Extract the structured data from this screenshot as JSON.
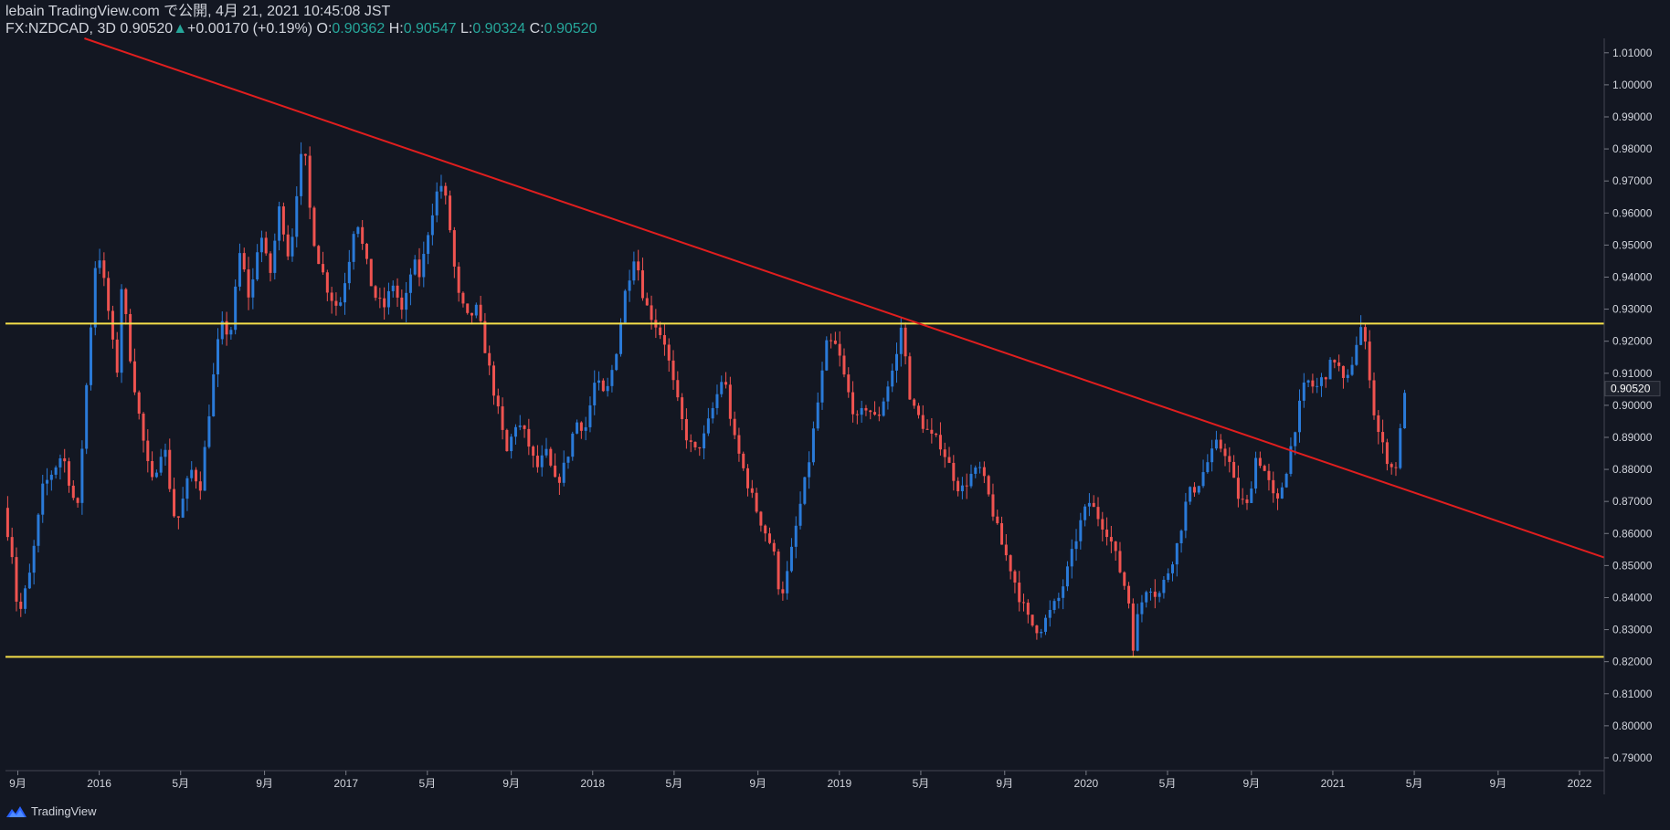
{
  "header": {
    "publish_line": "lebain TradingView.com で公開, 4月 21, 2021 10:45:08 JST",
    "symbol": "FX:NZDCAD, 3D",
    "last": "0.90520",
    "change": "+0.00170 (+0.19%)",
    "o_label": "O:",
    "o_value": "0.90362",
    "h_label": "H:",
    "h_value": "0.90547",
    "l_label": "L:",
    "l_value": "0.90324",
    "c_label": "C:",
    "c_value": "0.90520"
  },
  "footer": {
    "brand": "TradingView",
    "logo_icon": "tradingview-logo-icon"
  },
  "colors": {
    "background": "#131722",
    "up": "#2a7ad8",
    "down": "#ef5350",
    "trendline": "#e01e1e",
    "horizontal_line": "#f5e04a",
    "axis_text": "#d1d4dc",
    "price_tag_bg": "#1e222d",
    "change_up": "#26a69a"
  },
  "chart_data": {
    "type": "candlestick",
    "symbol": "FX:NZDCAD",
    "timeframe": "3D",
    "y_ticks": [
      "0.79000",
      "0.80000",
      "0.81000",
      "0.82000",
      "0.83000",
      "0.84000",
      "0.85000",
      "0.86000",
      "0.87000",
      "0.88000",
      "0.89000",
      "0.90000",
      "0.91000",
      "0.92000",
      "0.93000",
      "0.94000",
      "0.95000",
      "0.96000",
      "0.97000",
      "0.98000",
      "0.99000",
      "1.00000",
      "1.01000"
    ],
    "ylim": [
      0.786,
      1.0145
    ],
    "x_ticks": [
      {
        "t": 2015.67,
        "label": "9月"
      },
      {
        "t": 2016.0,
        "label": "2016"
      },
      {
        "t": 2016.33,
        "label": "5月"
      },
      {
        "t": 2016.67,
        "label": "9月"
      },
      {
        "t": 2017.0,
        "label": "2017"
      },
      {
        "t": 2017.33,
        "label": "5月"
      },
      {
        "t": 2017.67,
        "label": "9月"
      },
      {
        "t": 2018.0,
        "label": "2018"
      },
      {
        "t": 2018.33,
        "label": "5月"
      },
      {
        "t": 2018.67,
        "label": "9月"
      },
      {
        "t": 2019.0,
        "label": "2019"
      },
      {
        "t": 2019.33,
        "label": "5月"
      },
      {
        "t": 2019.67,
        "label": "9月"
      },
      {
        "t": 2020.0,
        "label": "2020"
      },
      {
        "t": 2020.33,
        "label": "5月"
      },
      {
        "t": 2020.67,
        "label": "9月"
      },
      {
        "t": 2021.0,
        "label": "2021"
      },
      {
        "t": 2021.33,
        "label": "5月"
      },
      {
        "t": 2021.67,
        "label": "9月"
      },
      {
        "t": 2022.0,
        "label": "2022"
      }
    ],
    "xlim": [
      2015.62,
      2022.1
    ],
    "last_price_label": "0.90520",
    "last_price": 0.9052,
    "price_anchors": [
      [
        2015.62,
        0.868
      ],
      [
        2015.66,
        0.852
      ],
      [
        2015.68,
        0.833
      ],
      [
        2015.73,
        0.848
      ],
      [
        2015.78,
        0.874
      ],
      [
        2015.86,
        0.885
      ],
      [
        2015.92,
        0.866
      ],
      [
        2015.97,
        0.92
      ],
      [
        2016.0,
        0.951
      ],
      [
        2016.04,
        0.933
      ],
      [
        2016.08,
        0.909
      ],
      [
        2016.1,
        0.938
      ],
      [
        2016.14,
        0.912
      ],
      [
        2016.18,
        0.892
      ],
      [
        2016.22,
        0.875
      ],
      [
        2016.27,
        0.889
      ],
      [
        2016.31,
        0.866
      ],
      [
        2016.33,
        0.865
      ],
      [
        2016.38,
        0.88
      ],
      [
        2016.42,
        0.875
      ],
      [
        2016.46,
        0.902
      ],
      [
        2016.5,
        0.925
      ],
      [
        2016.54,
        0.922
      ],
      [
        2016.58,
        0.948
      ],
      [
        2016.62,
        0.932
      ],
      [
        2016.66,
        0.955
      ],
      [
        2016.7,
        0.94
      ],
      [
        2016.74,
        0.962
      ],
      [
        2016.78,
        0.945
      ],
      [
        2016.82,
        0.975
      ],
      [
        2016.84,
        0.98
      ],
      [
        2016.87,
        0.955
      ],
      [
        2016.9,
        0.945
      ],
      [
        2016.94,
        0.935
      ],
      [
        2016.98,
        0.93
      ],
      [
        2017.02,
        0.945
      ],
      [
        2017.05,
        0.96
      ],
      [
        2017.08,
        0.948
      ],
      [
        2017.12,
        0.935
      ],
      [
        2017.16,
        0.93
      ],
      [
        2017.2,
        0.938
      ],
      [
        2017.24,
        0.928
      ],
      [
        2017.28,
        0.945
      ],
      [
        2017.31,
        0.94
      ],
      [
        2017.35,
        0.958
      ],
      [
        2017.39,
        0.97
      ],
      [
        2017.42,
        0.962
      ],
      [
        2017.46,
        0.935
      ],
      [
        2017.5,
        0.927
      ],
      [
        2017.54,
        0.93
      ],
      [
        2017.58,
        0.915
      ],
      [
        2017.62,
        0.9
      ],
      [
        2017.66,
        0.885
      ],
      [
        2017.7,
        0.895
      ],
      [
        2017.74,
        0.89
      ],
      [
        2017.78,
        0.88
      ],
      [
        2017.82,
        0.885
      ],
      [
        2017.86,
        0.875
      ],
      [
        2017.9,
        0.882
      ],
      [
        2017.94,
        0.895
      ],
      [
        2017.98,
        0.893
      ],
      [
        2018.02,
        0.908
      ],
      [
        2018.06,
        0.902
      ],
      [
        2018.1,
        0.915
      ],
      [
        2018.14,
        0.935
      ],
      [
        2018.18,
        0.948
      ],
      [
        2018.22,
        0.932
      ],
      [
        2018.26,
        0.926
      ],
      [
        2018.3,
        0.92
      ],
      [
        2018.34,
        0.905
      ],
      [
        2018.38,
        0.892
      ],
      [
        2018.42,
        0.885
      ],
      [
        2018.46,
        0.89
      ],
      [
        2018.5,
        0.9
      ],
      [
        2018.54,
        0.91
      ],
      [
        2018.58,
        0.89
      ],
      [
        2018.62,
        0.88
      ],
      [
        2018.66,
        0.87
      ],
      [
        2018.7,
        0.862
      ],
      [
        2018.74,
        0.855
      ],
      [
        2018.77,
        0.84
      ],
      [
        2018.8,
        0.848
      ],
      [
        2018.84,
        0.865
      ],
      [
        2018.88,
        0.88
      ],
      [
        2018.92,
        0.9
      ],
      [
        2018.96,
        0.92
      ],
      [
        2019.0,
        0.918
      ],
      [
        2019.04,
        0.905
      ],
      [
        2019.08,
        0.895
      ],
      [
        2019.12,
        0.9
      ],
      [
        2019.16,
        0.895
      ],
      [
        2019.2,
        0.905
      ],
      [
        2019.24,
        0.915
      ],
      [
        2019.26,
        0.925
      ],
      [
        2019.3,
        0.9
      ],
      [
        2019.34,
        0.895
      ],
      [
        2019.38,
        0.89
      ],
      [
        2019.42,
        0.888
      ],
      [
        2019.46,
        0.88
      ],
      [
        2019.5,
        0.873
      ],
      [
        2019.54,
        0.878
      ],
      [
        2019.58,
        0.88
      ],
      [
        2019.62,
        0.87
      ],
      [
        2019.66,
        0.858
      ],
      [
        2019.7,
        0.85
      ],
      [
        2019.74,
        0.84
      ],
      [
        2019.78,
        0.832
      ],
      [
        2019.82,
        0.83
      ],
      [
        2019.86,
        0.835
      ],
      [
        2019.9,
        0.84
      ],
      [
        2019.94,
        0.85
      ],
      [
        2019.98,
        0.862
      ],
      [
        2020.02,
        0.87
      ],
      [
        2020.06,
        0.865
      ],
      [
        2020.1,
        0.86
      ],
      [
        2020.14,
        0.85
      ],
      [
        2020.18,
        0.84
      ],
      [
        2020.2,
        0.825
      ],
      [
        2020.22,
        0.835
      ],
      [
        2020.26,
        0.845
      ],
      [
        2020.3,
        0.84
      ],
      [
        2020.34,
        0.848
      ],
      [
        2020.38,
        0.857
      ],
      [
        2020.42,
        0.872
      ],
      [
        2020.46,
        0.875
      ],
      [
        2020.5,
        0.882
      ],
      [
        2020.54,
        0.888
      ],
      [
        2020.58,
        0.885
      ],
      [
        2020.62,
        0.872
      ],
      [
        2020.66,
        0.868
      ],
      [
        2020.7,
        0.885
      ],
      [
        2020.74,
        0.878
      ],
      [
        2020.78,
        0.868
      ],
      [
        2020.82,
        0.88
      ],
      [
        2020.86,
        0.895
      ],
      [
        2020.9,
        0.908
      ],
      [
        2020.94,
        0.905
      ],
      [
        2020.98,
        0.91
      ],
      [
        2021.02,
        0.915
      ],
      [
        2021.06,
        0.905
      ],
      [
        2021.1,
        0.918
      ],
      [
        2021.12,
        0.925
      ],
      [
        2021.15,
        0.915
      ],
      [
        2021.18,
        0.895
      ],
      [
        2021.22,
        0.885
      ],
      [
        2021.25,
        0.88
      ],
      [
        2021.27,
        0.882
      ],
      [
        2021.3,
        0.9052
      ]
    ],
    "horizontal_lines": [
      {
        "name": "resistance",
        "price": 0.9255
      },
      {
        "name": "support",
        "price": 0.8215
      }
    ],
    "trendlines": [
      {
        "name": "descending-trendline",
        "p1": [
          2015.94,
          1.0145
        ],
        "p2": [
          2022.1,
          0.8525
        ]
      }
    ]
  }
}
